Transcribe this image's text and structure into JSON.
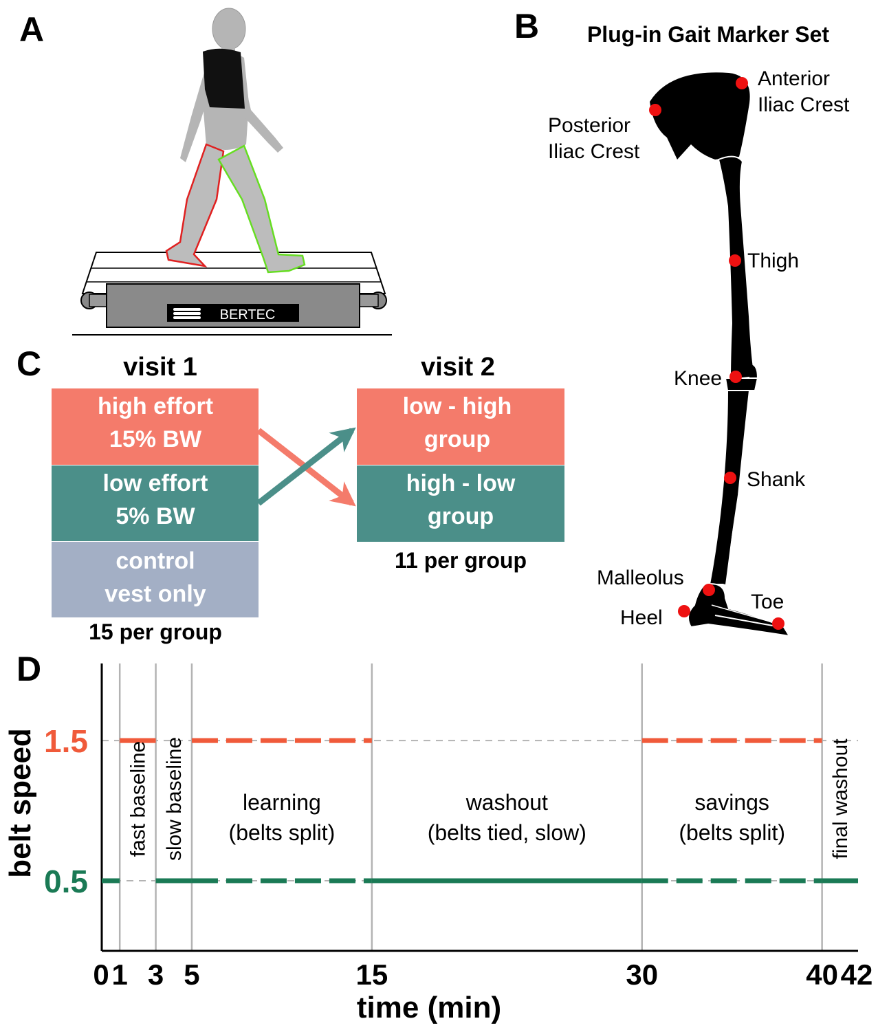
{
  "panel_labels": {
    "a": "A",
    "b": "B",
    "c": "C",
    "d": "D"
  },
  "panel_a": {
    "treadmill_brand": "BERTEC"
  },
  "panel_b": {
    "title": "Plug-in Gait Marker Set",
    "markers": {
      "anterior_line1": "Anterior",
      "anterior_line2": "Iliac Crest",
      "posterior_line1": "Posterior",
      "posterior_line2": "Iliac Crest",
      "thigh": "Thigh",
      "knee": "Knee",
      "shank": "Shank",
      "malleolus": "Malleolus",
      "heel": "Heel",
      "toe": "Toe"
    }
  },
  "panel_c": {
    "visit1": {
      "title": "visit 1",
      "groups": [
        {
          "line1": "high effort",
          "line2": "15% BW"
        },
        {
          "line1": "low effort",
          "line2": "5% BW"
        },
        {
          "line1": "control",
          "line2": "vest only"
        }
      ],
      "note": "15 per group"
    },
    "visit2": {
      "title": "visit 2",
      "groups": [
        {
          "line1": "low - high",
          "line2": "group"
        },
        {
          "line1": "high - low",
          "line2": "group"
        }
      ],
      "note": "11 per group"
    },
    "colors": {
      "high": "#f47b6b",
      "low": "#4b8f89",
      "control": "#a3afc5",
      "text": "#ffffff"
    }
  },
  "chart_data": {
    "type": "line",
    "xlabel": "time (min)",
    "ylabel": "belt speed",
    "xlim": [
      0,
      42
    ],
    "ylim": [
      0,
      2.05
    ],
    "x_ticks": [
      0,
      1,
      3,
      5,
      15,
      30,
      40,
      42
    ],
    "y_ticks": [
      {
        "value": 1.5,
        "label": "1.5",
        "color": "#f05a3a"
      },
      {
        "value": 0.5,
        "label": "0.5",
        "color": "#1a7a55"
      }
    ],
    "phase_boundaries": [
      1,
      3,
      5,
      15,
      30,
      40
    ],
    "phases": [
      {
        "label": "fast baseline",
        "x": 2,
        "rotated": true
      },
      {
        "label": "slow baseline",
        "x": 4,
        "rotated": true
      },
      {
        "label": "learning",
        "label2": "(belts split)",
        "x": 10,
        "rotated": false
      },
      {
        "label": "washout",
        "label2": "(belts tied, slow)",
        "x": 22.5,
        "rotated": false
      },
      {
        "label": "savings",
        "label2": "(belts split)",
        "x": 35,
        "rotated": false
      },
      {
        "label": "final washout",
        "x": 41,
        "rotated": true
      }
    ],
    "series": [
      {
        "color": "#f05a3a",
        "segments": [
          {
            "x": [
              1,
              3
            ],
            "y": 1.5,
            "style": "solid"
          },
          {
            "x": [
              5,
              15
            ],
            "y": 1.5,
            "style": "dashed"
          },
          {
            "x": [
              30,
              40
            ],
            "y": 1.5,
            "style": "dashed"
          }
        ]
      },
      {
        "color": "#1a7a55",
        "segments": [
          {
            "x": [
              0,
              1
            ],
            "y": 0.5,
            "style": "solid"
          },
          {
            "x": [
              3,
              5
            ],
            "y": 0.5,
            "style": "solid"
          },
          {
            "x": [
              5,
              15
            ],
            "y": 0.5,
            "style": "dashed"
          },
          {
            "x": [
              15,
              30
            ],
            "y": 0.5,
            "style": "solid"
          },
          {
            "x": [
              30,
              40
            ],
            "y": 0.5,
            "style": "dashed"
          },
          {
            "x": [
              40,
              42
            ],
            "y": 0.5,
            "style": "solid"
          }
        ]
      }
    ]
  }
}
